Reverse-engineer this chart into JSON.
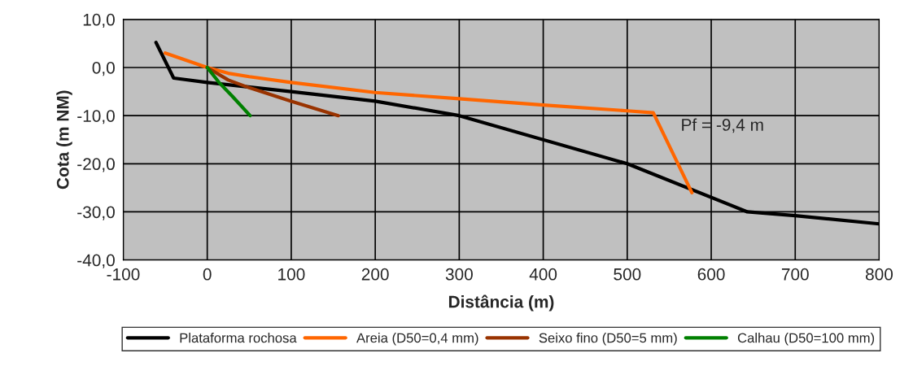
{
  "chart_data": {
    "type": "line",
    "xlabel": "Distância (m)",
    "ylabel": "Cota (m NM)",
    "xlim": [
      -100,
      800
    ],
    "xticks": [
      -100,
      0,
      100,
      200,
      300,
      400,
      500,
      600,
      700,
      800
    ],
    "ylim": [
      -40,
      10
    ],
    "yticks": [
      {
        "value": 10,
        "label": "10,0"
      },
      {
        "value": 0,
        "label": "0,0"
      },
      {
        "value": -10,
        "label": "-10,0"
      },
      {
        "value": -20,
        "label": "-20,0"
      },
      {
        "value": -30,
        "label": "-30,0"
      },
      {
        "value": -40,
        "label": "-40,0"
      }
    ],
    "grid": true,
    "legend": "bottom",
    "marker": "none",
    "line_style": "solid",
    "annotations": [
      {
        "text": "Pf = -9,4 m",
        "x": 530,
        "y": -9.4
      }
    ],
    "series": [
      {
        "name": "Plataforma rochosa",
        "color": "#000000",
        "x": [
          -61,
          -40,
          0,
          100,
          200,
          300,
          500,
          643,
          700,
          800
        ],
        "values": [
          5.2,
          -2.2,
          -3.1,
          -5,
          -7,
          -10,
          -20,
          -30,
          -30.8,
          -32.5
        ]
      },
      {
        "name": "Areia (D50=0,4 mm)",
        "color": "#ff6600",
        "x": [
          -50,
          0,
          25,
          50,
          100,
          200,
          300,
          400,
          500,
          531,
          577
        ],
        "values": [
          3,
          0,
          -1.2,
          -1.9,
          -3.1,
          -5.2,
          -6.5,
          -7.8,
          -9,
          -9.4,
          -26
        ]
      },
      {
        "name": "Seixo fino (D50=5 mm)",
        "color": "#993300",
        "x": [
          0,
          25,
          50,
          100,
          156
        ],
        "values": [
          0,
          -2.6,
          -4.2,
          -7,
          -10
        ]
      },
      {
        "name": "Calhau (D50=100 mm)",
        "color": "#008000",
        "x": [
          0,
          14,
          30,
          51
        ],
        "values": [
          0,
          -3.1,
          -6,
          -10
        ]
      }
    ]
  }
}
